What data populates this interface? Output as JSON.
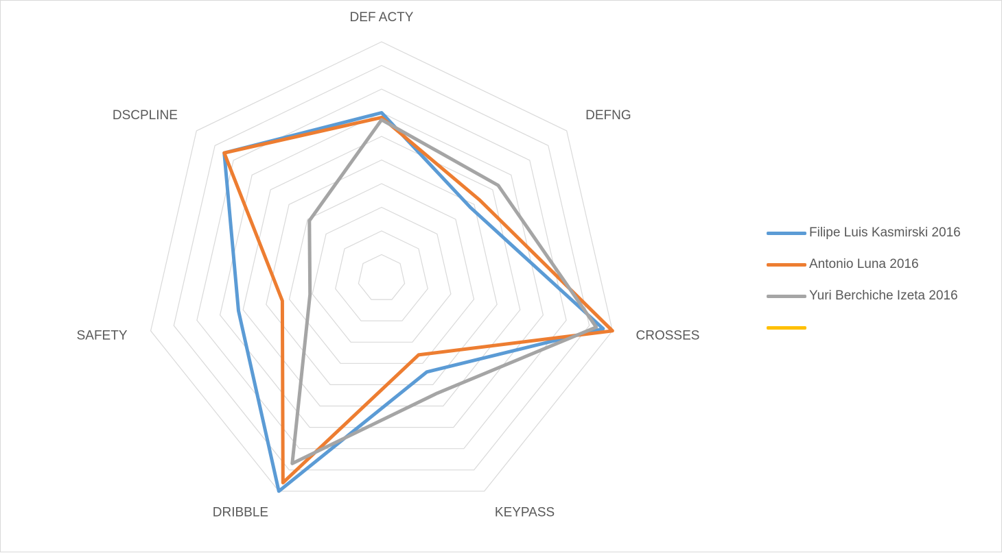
{
  "chart_data": {
    "type": "radar",
    "axes": [
      "DEF ACTY",
      "DEFNG",
      "CROSSES",
      "KEYPASS",
      "DRIBBLE",
      "SAFETY",
      "DSCPLINE"
    ],
    "rmax": 10,
    "rings": 10,
    "series": [
      {
        "name": "Filipe Luis Kasmirski 2016",
        "color": "#5B9BD5",
        "values": [
          7.0,
          4.8,
          9.6,
          4.4,
          10.0,
          6.2,
          8.5
        ]
      },
      {
        "name": "Antonio Luna 2016",
        "color": "#ED7D31",
        "values": [
          6.8,
          5.3,
          10.0,
          3.6,
          9.6,
          4.3,
          8.5
        ]
      },
      {
        "name": "Yuri Berchiche Izeta 2016",
        "color": "#A5A5A5",
        "values": [
          6.7,
          6.3,
          9.3,
          5.4,
          8.7,
          3.1,
          3.9
        ]
      },
      {
        "name": "",
        "color": "#FFC000",
        "values": []
      }
    ]
  }
}
